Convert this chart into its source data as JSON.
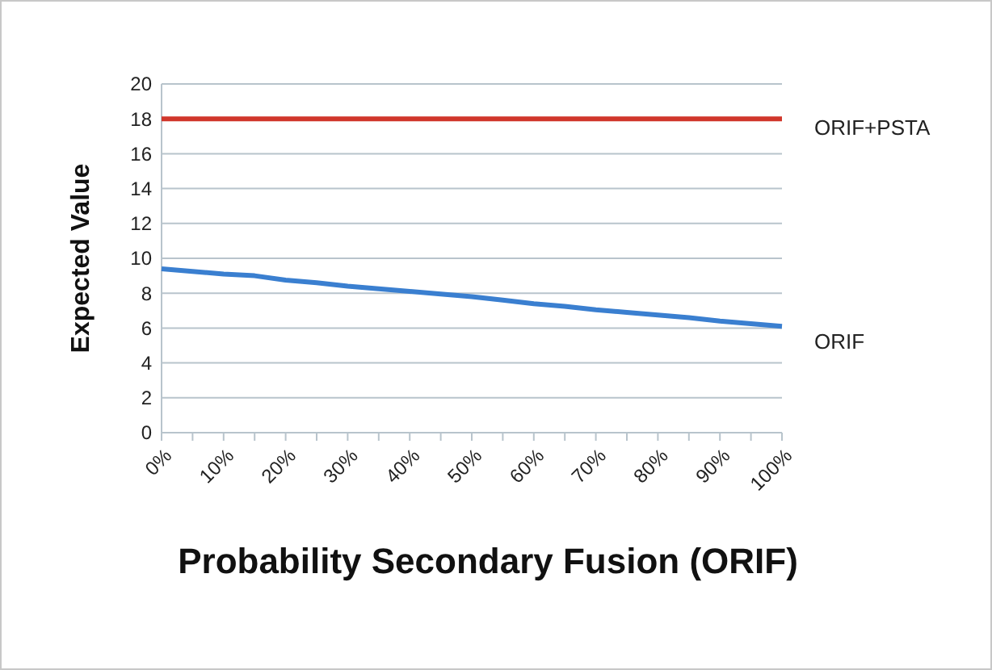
{
  "chart_data": {
    "type": "line",
    "xlabel": "Probability Secondary Fusion (ORIF)",
    "ylabel": "Expected Value",
    "categories": [
      "0%",
      null,
      "10%",
      null,
      "20%",
      null,
      "30%",
      null,
      "40%",
      null,
      "50%",
      null,
      "60%",
      null,
      "70%",
      null,
      "80%",
      null,
      "90%",
      null,
      "100%"
    ],
    "series": [
      {
        "name": "ORIF+PSTA",
        "color": "#d0362b",
        "values": [
          18,
          18,
          18,
          18,
          18,
          18,
          18,
          18,
          18,
          18,
          18,
          18,
          18,
          18,
          18,
          18,
          18,
          18,
          18,
          18,
          18
        ]
      },
      {
        "name": "ORIF",
        "color": "#3a7fd0",
        "values": [
          9.4,
          9.25,
          9.1,
          9.0,
          8.75,
          8.6,
          8.4,
          8.25,
          8.1,
          7.95,
          7.8,
          7.6,
          7.4,
          7.25,
          7.05,
          6.9,
          6.75,
          6.6,
          6.4,
          6.25,
          6.1
        ]
      }
    ],
    "ylim": [
      0,
      20
    ],
    "yticks": [
      0,
      2,
      4,
      6,
      8,
      10,
      12,
      14,
      16,
      18,
      20
    ],
    "grid": "y",
    "marker": "none",
    "line_style": "solid"
  }
}
